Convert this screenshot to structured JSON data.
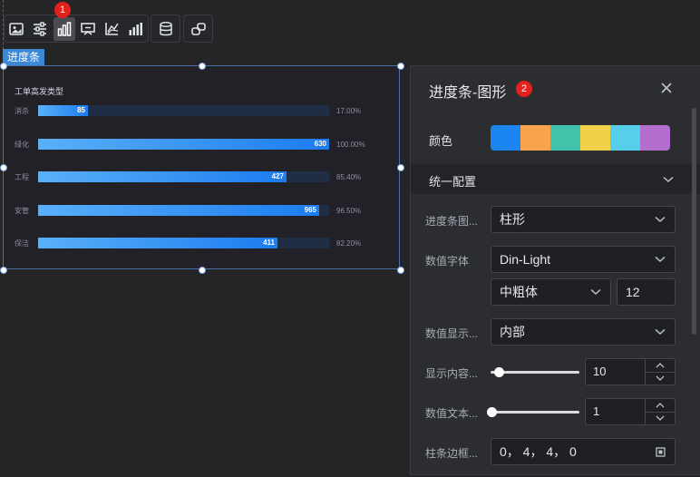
{
  "toolbar": {
    "icons": [
      "image-icon",
      "sliders-icon",
      "bar-chart-icon",
      "table-chart-icon",
      "axis-chart-icon",
      "step-bar-icon",
      "database-icon",
      "link-icon"
    ],
    "active": "bar-chart-icon",
    "badge_1": "1"
  },
  "component": {
    "label": "进度条",
    "chart_title": "工单高发类型"
  },
  "chart_data": {
    "type": "bar",
    "title": "工单高发类型",
    "categories": [
      "消杀",
      "绿化",
      "工程",
      "安管",
      "保洁"
    ],
    "values": [
      85,
      630,
      427,
      965,
      411
    ],
    "percents": [
      "17.00%",
      "100.00%",
      "85.40%",
      "96.50%",
      "82.20%"
    ],
    "fractions": [
      0.17,
      1.0,
      0.854,
      0.965,
      0.822
    ],
    "value_labels": [
      "85",
      "630",
      "427",
      "965",
      "411"
    ]
  },
  "panel": {
    "title": "进度条-图形",
    "badge_2": "2",
    "color_label": "颜色",
    "colors": [
      "#1b86f2",
      "#f7a44c",
      "#43c2ac",
      "#f0d14a",
      "#57cfea",
      "#b46ccd"
    ],
    "section_title": "统一配置",
    "bar_type_label": "进度条图...",
    "bar_type_value": "柱形",
    "value_font_label": "数值字体",
    "value_font_value": "Din-Light",
    "font_weight_value": "中粗体",
    "font_size_value": "12",
    "value_display_label": "数值显示...",
    "value_display_value": "内部",
    "display_content_label": "显示内容...",
    "display_content_value": "10",
    "display_content_level": 0.0,
    "value_text_label": "数值文本...",
    "value_text_value": "1",
    "value_text_level": 0.0,
    "bar_border_label": "柱条边框...",
    "bar_border_value": "0，  4，  4，  0"
  }
}
